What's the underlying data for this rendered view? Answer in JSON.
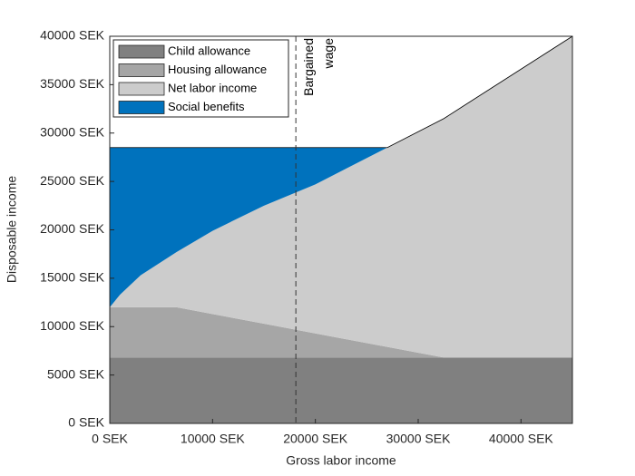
{
  "chart_data": {
    "type": "stacked_area",
    "xlabel": "Gross labor income",
    "ylabel": "Disposable income",
    "x": [
      0,
      1000,
      3000,
      6500,
      10000,
      15000,
      20000,
      27000,
      32500,
      45000
    ],
    "series": [
      {
        "name": "Child allowance",
        "color": "#808080",
        "values": [
          6800,
          6800,
          6800,
          6800,
          6800,
          6800,
          6800,
          6800,
          6800,
          6800
        ]
      },
      {
        "name": "Housing allowance",
        "color": "#a6a6a6",
        "values": [
          5200,
          5200,
          5200,
          5200,
          4500,
          3500,
          2500,
          1100,
          0,
          0
        ]
      },
      {
        "name": "Net labor income",
        "color": "#cccccc",
        "values": [
          0,
          1300,
          3300,
          5700,
          8600,
          12200,
          15400,
          20600,
          24700,
          33200
        ]
      },
      {
        "name": "Social benefits",
        "color": "#0072bd",
        "values": [
          16500,
          15200,
          13200,
          10800,
          8600,
          6000,
          3800,
          0,
          0,
          0
        ]
      }
    ],
    "xlim": [
      0,
      45000
    ],
    "ylim": [
      0,
      40000
    ],
    "xticks": [
      {
        "value": 0,
        "label": "0 SEK"
      },
      {
        "value": 10000,
        "label": "10000 SEK"
      },
      {
        "value": 20000,
        "label": "20000 SEK"
      },
      {
        "value": 30000,
        "label": "30000 SEK"
      },
      {
        "value": 40000,
        "label": "40000 SEK"
      }
    ],
    "yticks": [
      {
        "value": 0,
        "label": "0 SEK"
      },
      {
        "value": 5000,
        "label": "5000 SEK"
      },
      {
        "value": 10000,
        "label": "10000 SEK"
      },
      {
        "value": 15000,
        "label": "15000 SEK"
      },
      {
        "value": 20000,
        "label": "20000 SEK"
      },
      {
        "value": 25000,
        "label": "25000 SEK"
      },
      {
        "value": 30000,
        "label": "30000 SEK"
      },
      {
        "value": 35000,
        "label": "35000 SEK"
      },
      {
        "value": 40000,
        "label": "40000 SEK"
      }
    ],
    "vline": {
      "x": 18100,
      "label": [
        "Bargained",
        "wage"
      ]
    },
    "legend": "upper left"
  }
}
